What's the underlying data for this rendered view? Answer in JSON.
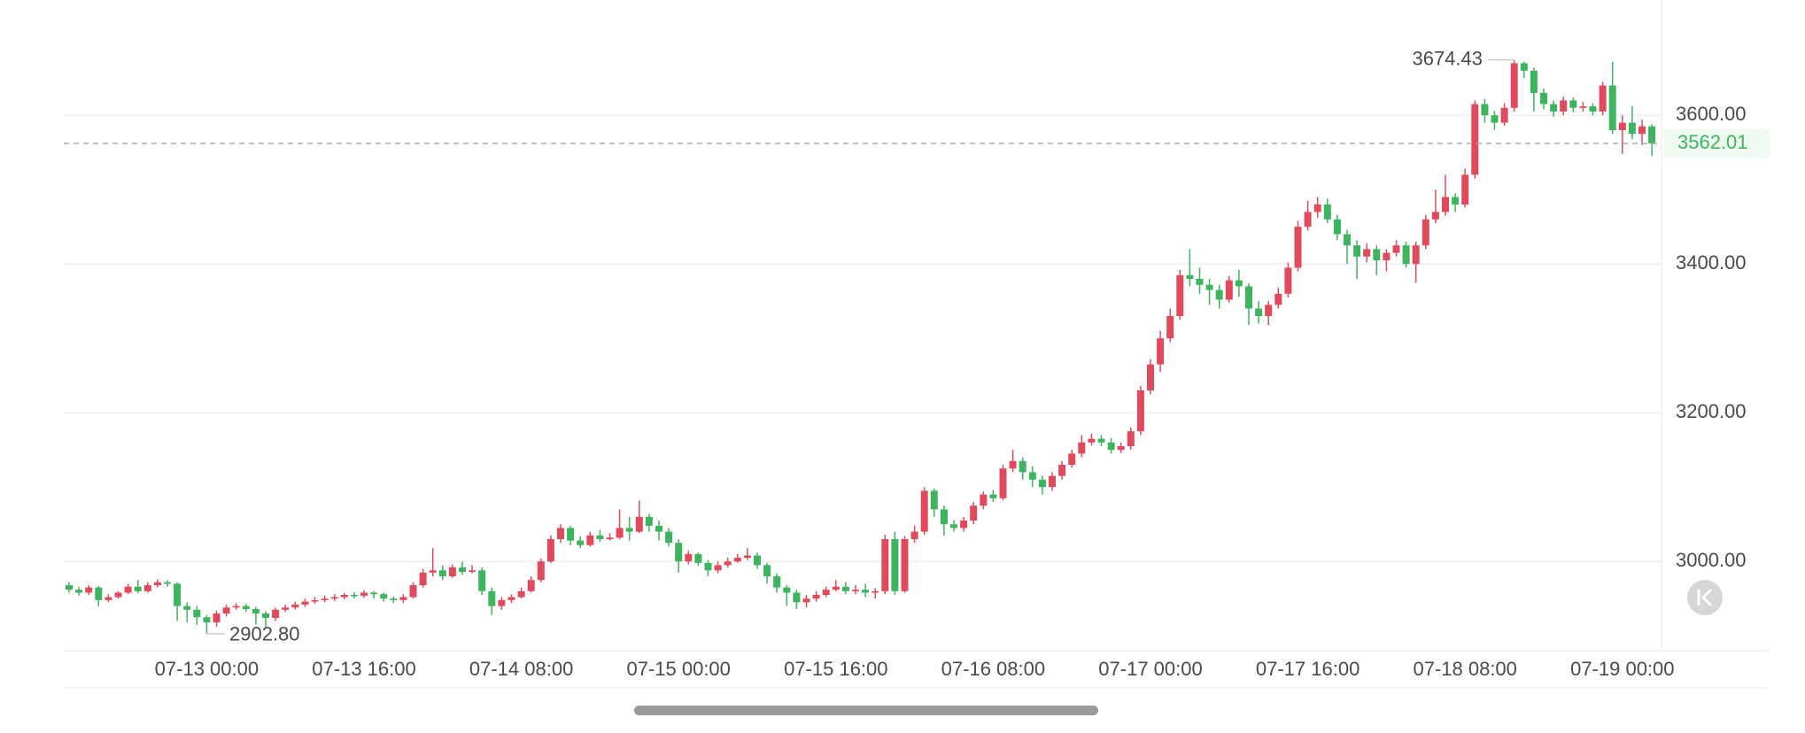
{
  "chart_data": {
    "type": "candlestick",
    "categories": [
      null,
      null,
      null,
      null,
      null,
      null,
      null,
      null,
      null,
      null,
      null,
      null,
      null,
      null,
      "07-13 00:00",
      null,
      null,
      null,
      null,
      null,
      null,
      null,
      null,
      null,
      null,
      null,
      null,
      null,
      null,
      null,
      "07-13 16:00",
      null,
      null,
      null,
      null,
      null,
      null,
      null,
      null,
      null,
      null,
      null,
      null,
      null,
      null,
      null,
      "07-14 08:00",
      null,
      null,
      null,
      null,
      null,
      null,
      null,
      null,
      null,
      null,
      null,
      null,
      null,
      null,
      null,
      "07-15 00:00",
      null,
      null,
      null,
      null,
      null,
      null,
      null,
      null,
      null,
      null,
      null,
      null,
      null,
      null,
      null,
      "07-15 16:00",
      null,
      null,
      null,
      null,
      null,
      null,
      null,
      null,
      null,
      null,
      null,
      null,
      null,
      null,
      null,
      "07-16 08:00",
      null,
      null,
      null,
      null,
      null,
      null,
      null,
      null,
      null,
      null,
      null,
      null,
      null,
      null,
      null,
      "07-17 00:00",
      null,
      null,
      null,
      null,
      null,
      null,
      null,
      null,
      null,
      null,
      null,
      null,
      null,
      null,
      null,
      "07-17 16:00",
      null,
      null,
      null,
      null,
      null,
      null,
      null,
      null,
      null,
      null,
      null,
      null,
      null,
      null,
      null,
      "07-18 08:00",
      null,
      null,
      null,
      null,
      null,
      null,
      null,
      null,
      null,
      null,
      null,
      null,
      null,
      null,
      null,
      "07-19 00:00",
      null,
      null,
      null
    ],
    "open": [
      2968,
      2962,
      2958,
      2965,
      2948,
      2952,
      2958,
      2966,
      2960,
      2968,
      2972,
      2970,
      2940,
      2935,
      2925,
      2918,
      2930,
      2938,
      2940,
      2936,
      2930,
      2924,
      2935,
      2938,
      2942,
      2946,
      2948,
      2950,
      2952,
      2955,
      2954,
      2958,
      2956,
      2950,
      2948,
      2952,
      2968,
      2985,
      2988,
      2980,
      2992,
      2986,
      2988,
      2960,
      2940,
      2948,
      2952,
      2960,
      2975,
      3000,
      3030,
      3045,
      3028,
      3022,
      3035,
      3030,
      3032,
      3045,
      3040,
      3060,
      3048,
      3040,
      3025,
      3000,
      3010,
      2998,
      2988,
      2995,
      3000,
      3005,
      3008,
      2995,
      2980,
      2965,
      2958,
      2945,
      2950,
      2955,
      2962,
      2966,
      2960,
      2962,
      2958,
      2960,
      3030,
      2960,
      3030,
      3040,
      3095,
      3070,
      3050,
      3045,
      3055,
      3075,
      3090,
      3085,
      3125,
      3135,
      3120,
      3110,
      3100,
      3115,
      3130,
      3145,
      3160,
      3165,
      3160,
      3150,
      3155,
      3175,
      3230,
      3265,
      3300,
      3330,
      3385,
      3380,
      3372,
      3365,
      3352,
      3378,
      3370,
      3340,
      3330,
      3345,
      3360,
      3395,
      3450,
      3470,
      3480,
      3460,
      3440,
      3425,
      3410,
      3420,
      3405,
      3415,
      3425,
      3400,
      3425,
      3460,
      3470,
      3490,
      3480,
      3520,
      3615,
      3600,
      3590,
      3610,
      3670,
      3660,
      3630,
      3615,
      3605,
      3620,
      3610,
      3612,
      3605,
      3640,
      3580,
      3590,
      3575,
      3585
    ],
    "high": [
      2972,
      2966,
      2968,
      2967,
      2956,
      2960,
      2970,
      2975,
      2972,
      2976,
      2975,
      2972,
      2945,
      2940,
      2928,
      2934,
      2942,
      2944,
      2943,
      2939,
      2933,
      2938,
      2942,
      2946,
      2950,
      2952,
      2954,
      2956,
      2958,
      2959,
      2961,
      2960,
      2958,
      2953,
      2956,
      2972,
      2990,
      3018,
      2995,
      2996,
      3000,
      2995,
      2992,
      2965,
      2952,
      2956,
      2965,
      2980,
      3004,
      3035,
      3050,
      3048,
      3034,
      3040,
      3042,
      3038,
      3070,
      3060,
      3082,
      3064,
      3055,
      3045,
      3030,
      3014,
      3012,
      3002,
      3000,
      3005,
      3010,
      3018,
      3012,
      2998,
      2984,
      2968,
      2962,
      2955,
      2960,
      2966,
      2975,
      2972,
      2968,
      2970,
      2964,
      3036,
      3040,
      3034,
      3048,
      3100,
      3098,
      3075,
      3056,
      3060,
      3080,
      3094,
      3096,
      3130,
      3150,
      3140,
      3128,
      3115,
      3120,
      3135,
      3150,
      3170,
      3172,
      3170,
      3166,
      3160,
      3180,
      3236,
      3272,
      3310,
      3340,
      3392,
      3420,
      3395,
      3380,
      3372,
      3384,
      3392,
      3374,
      3350,
      3350,
      3368,
      3402,
      3458,
      3485,
      3490,
      3488,
      3466,
      3446,
      3432,
      3428,
      3425,
      3420,
      3432,
      3430,
      3430,
      3466,
      3500,
      3520,
      3495,
      3528,
      3620,
      3622,
      3606,
      3616,
      3674.43,
      3672,
      3664,
      3636,
      3620,
      3625,
      3624,
      3618,
      3616,
      3645,
      3672,
      3600,
      3612,
      3594,
      3588
    ],
    "low": [
      2958,
      2954,
      2955,
      2940,
      2945,
      2950,
      2956,
      2957,
      2958,
      2965,
      2966,
      2920,
      2918,
      2915,
      2902.8,
      2912,
      2926,
      2935,
      2932,
      2915,
      2912,
      2920,
      2932,
      2935,
      2939,
      2943,
      2945,
      2947,
      2949,
      2950,
      2951,
      2950,
      2946,
      2944,
      2944,
      2950,
      2965,
      2980,
      2975,
      2978,
      2982,
      2984,
      2955,
      2928,
      2935,
      2944,
      2950,
      2958,
      2972,
      2998,
      3025,
      3022,
      3018,
      3020,
      3026,
      3028,
      3030,
      3028,
      3038,
      3040,
      3028,
      3020,
      2985,
      2996,
      2994,
      2980,
      2984,
      2992,
      2998,
      3002,
      2990,
      2970,
      2958,
      2940,
      2936,
      2938,
      2946,
      2952,
      2960,
      2956,
      2956,
      2952,
      2950,
      2956,
      2955,
      2958,
      3025,
      3036,
      3060,
      3035,
      3040,
      3040,
      3050,
      3070,
      3080,
      3082,
      3120,
      3110,
      3100,
      3090,
      3095,
      3110,
      3126,
      3140,
      3156,
      3155,
      3145,
      3146,
      3150,
      3170,
      3225,
      3255,
      3295,
      3325,
      3370,
      3360,
      3345,
      3340,
      3348,
      3356,
      3318,
      3320,
      3318,
      3340,
      3355,
      3390,
      3445,
      3462,
      3455,
      3432,
      3400,
      3380,
      3402,
      3385,
      3390,
      3410,
      3395,
      3375,
      3420,
      3455,
      3465,
      3470,
      3476,
      3515,
      3590,
      3580,
      3586,
      3605,
      3650,
      3605,
      3608,
      3598,
      3600,
      3604,
      3605,
      3600,
      3600,
      3575,
      3548,
      3568,
      3560,
      3545
    ],
    "close": [
      2962,
      2958,
      2965,
      2948,
      2952,
      2958,
      2966,
      2960,
      2968,
      2972,
      2970,
      2940,
      2935,
      2925,
      2918,
      2930,
      2938,
      2940,
      2936,
      2930,
      2924,
      2935,
      2938,
      2942,
      2946,
      2948,
      2950,
      2952,
      2955,
      2954,
      2958,
      2956,
      2950,
      2948,
      2952,
      2968,
      2985,
      2988,
      2980,
      2992,
      2986,
      2988,
      2960,
      2940,
      2948,
      2952,
      2960,
      2975,
      3000,
      3030,
      3045,
      3028,
      3022,
      3035,
      3030,
      3032,
      3045,
      3040,
      3060,
      3048,
      3040,
      3025,
      3000,
      3010,
      2998,
      2988,
      2995,
      3000,
      3005,
      3008,
      2995,
      2980,
      2965,
      2958,
      2945,
      2950,
      2955,
      2962,
      2966,
      2960,
      2962,
      2958,
      2960,
      3030,
      2960,
      3030,
      3040,
      3095,
      3070,
      3050,
      3045,
      3055,
      3075,
      3090,
      3085,
      3125,
      3135,
      3120,
      3110,
      3100,
      3115,
      3130,
      3145,
      3160,
      3165,
      3160,
      3150,
      3155,
      3175,
      3230,
      3265,
      3300,
      3330,
      3385,
      3380,
      3372,
      3365,
      3352,
      3378,
      3370,
      3340,
      3330,
      3345,
      3360,
      3395,
      3450,
      3470,
      3480,
      3460,
      3440,
      3425,
      3410,
      3420,
      3405,
      3415,
      3425,
      3400,
      3425,
      3460,
      3470,
      3490,
      3480,
      3520,
      3615,
      3600,
      3590,
      3610,
      3670,
      3660,
      3630,
      3615,
      3605,
      3620,
      3610,
      3612,
      3605,
      3640,
      3580,
      3590,
      3575,
      3585,
      3562.01
    ],
    "up_color": "#e04a5c",
    "down_color": "#3cb55e",
    "ylim": [
      2880,
      3755
    ],
    "yticks": [
      {
        "value": 3000,
        "label": "3000.00"
      },
      {
        "value": 3200,
        "label": "3200.00"
      },
      {
        "value": 3400,
        "label": "3400.00"
      },
      {
        "value": 3600,
        "label": "3600.00"
      }
    ],
    "grid": true,
    "max_label": 3674.43,
    "min_label": {
      "value": 2902.8,
      "label": "2902.80"
    },
    "last_price": 3562.01
  }
}
